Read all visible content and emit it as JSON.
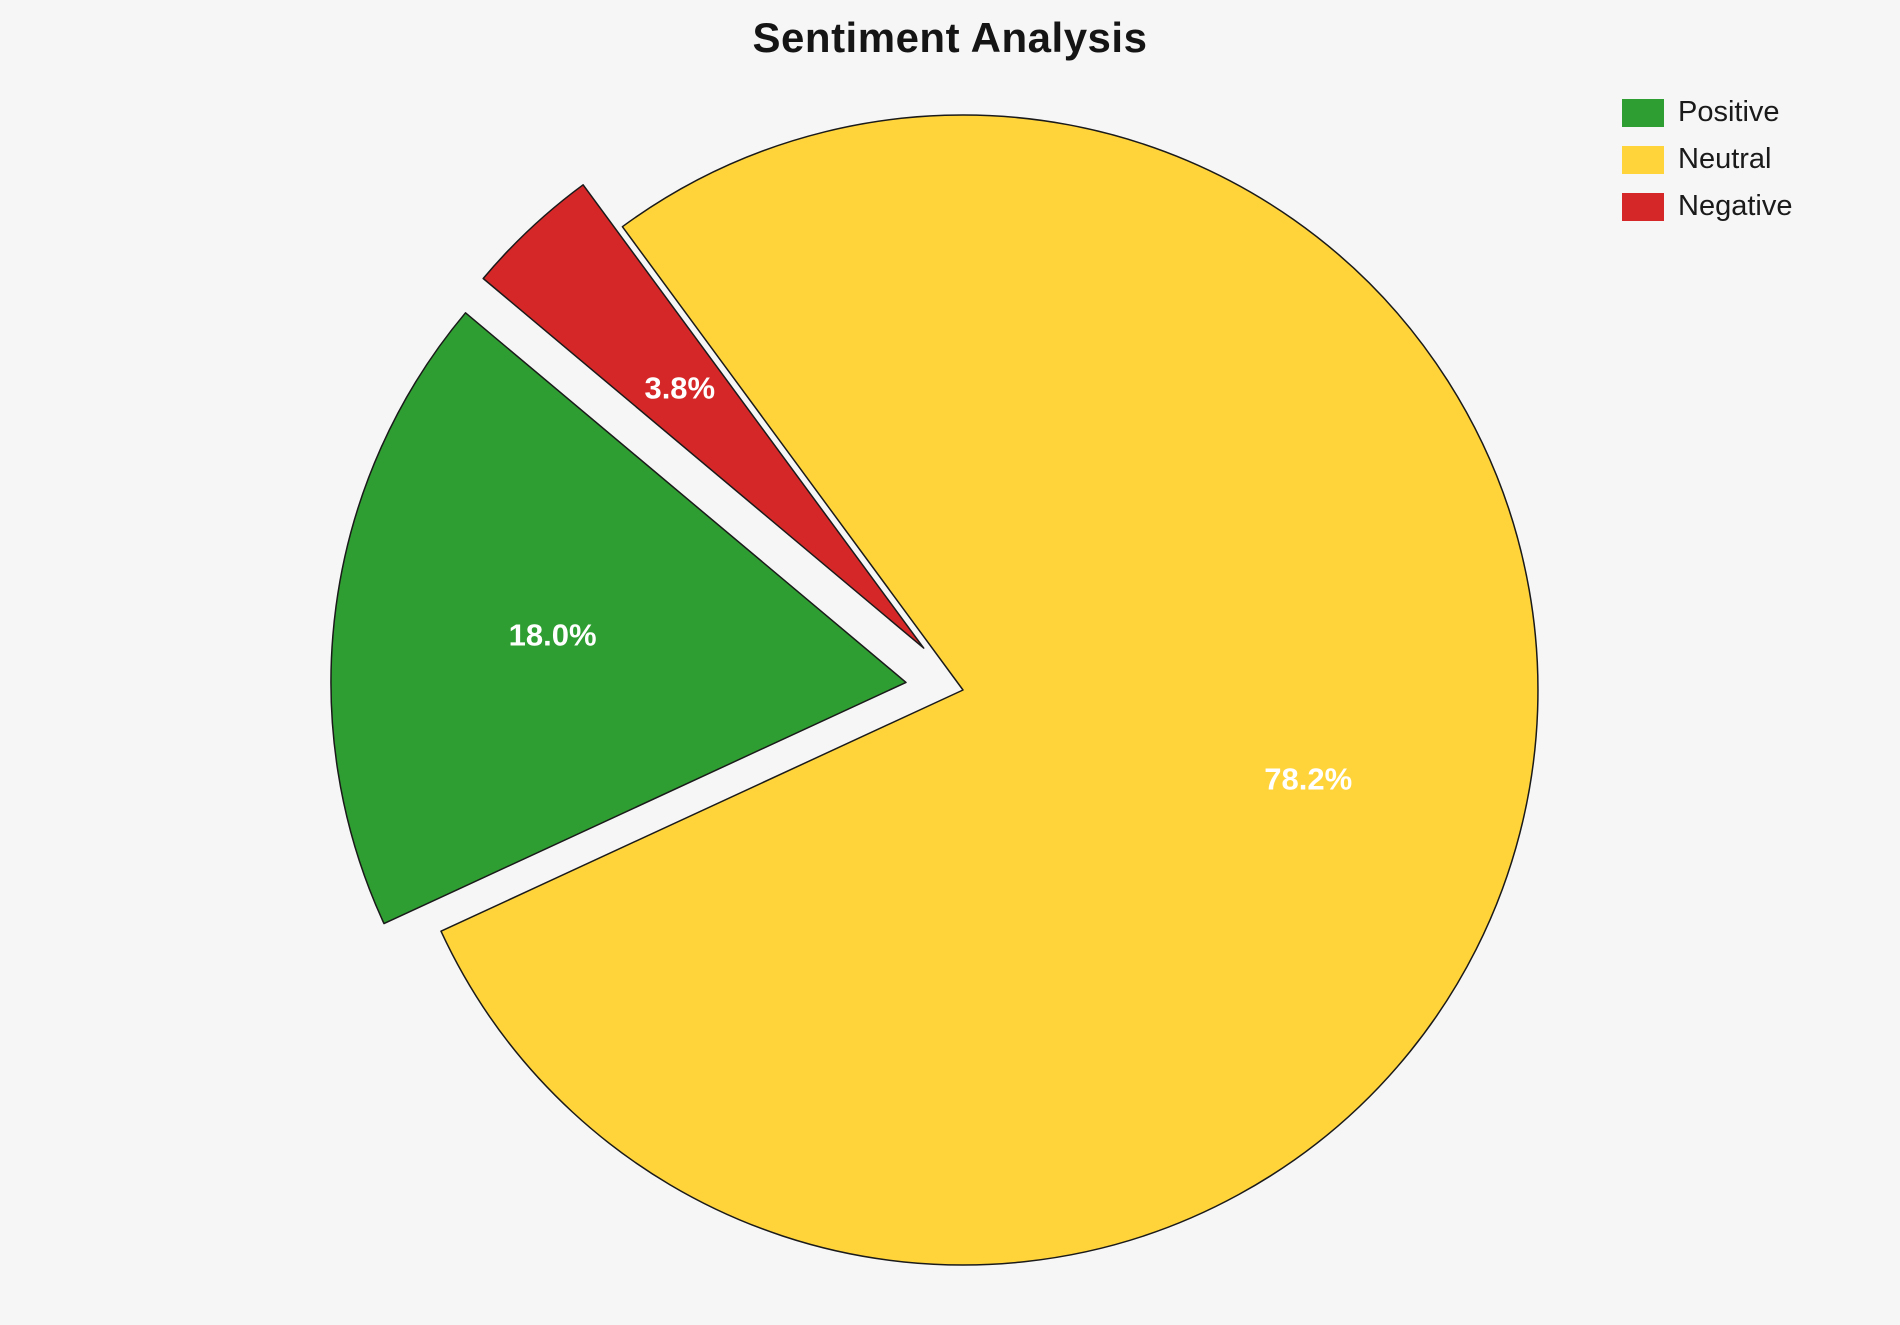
{
  "page": {
    "background_color": "#f6f6f6"
  },
  "chart_data": {
    "type": "pie",
    "title": "Sentiment Analysis",
    "slices": [
      {
        "label": "Positive",
        "value": 18.0,
        "pct_label": "18.0%",
        "color": "#2f9e32",
        "explode": 0.1
      },
      {
        "label": "Neutral",
        "value": 78.2,
        "pct_label": "78.2%",
        "color": "#ffd43b",
        "explode": 0.0
      },
      {
        "label": "Negative",
        "value": 3.8,
        "pct_label": "3.8%",
        "color": "#d62728",
        "explode": 0.1
      }
    ],
    "start_angle_deg": 140,
    "direction": "counterclockwise",
    "pct_distance": 0.62,
    "pct_label_color": "#ffffff",
    "edge_color": "#1a1a1a",
    "legend": {
      "position": "top-right",
      "entries": [
        "Positive",
        "Neutral",
        "Negative"
      ]
    }
  }
}
